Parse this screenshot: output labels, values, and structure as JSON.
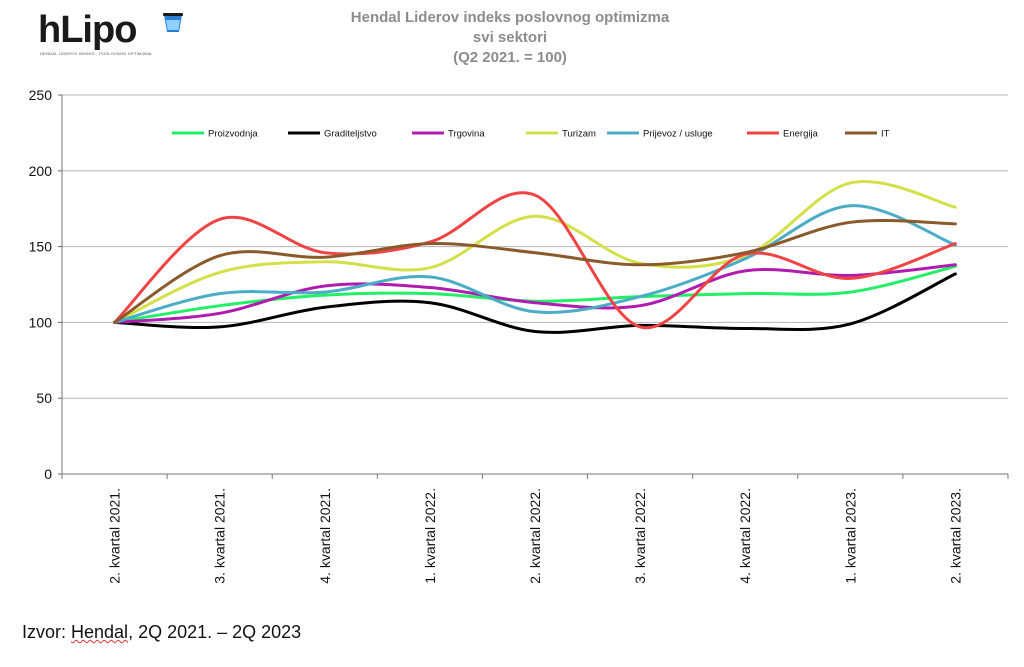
{
  "logo": {
    "text": "hLipo",
    "subtitle": "HENDAL LIDEROV INDEKS · POSLOVNOG OPTIMIZMA"
  },
  "title": {
    "line1": "Hendal Liderov indeks poslovnog  optimizma",
    "line2": "svi sektori",
    "line3": "(Q2 2021. = 100)"
  },
  "source": {
    "prefix": "Izvor:  ",
    "name": "Hendal",
    "rest": ", 2Q 2021. – 2Q 2023"
  },
  "chart_data": {
    "type": "line",
    "title": "Hendal Liderov indeks poslovnog optimizma – svi sektori (Q2 2021. = 100)",
    "categories": [
      "2. kvartal 2021.",
      "3. kvartal 2021.",
      "4. kvartal 2021.",
      "1. kvartal 2022.",
      "2. kvartal 2022.",
      "3. kvartal 2022.",
      "4. kvartal 2022.",
      "1. kvartal 2023.",
      "2. kvartal 2023."
    ],
    "ylim": [
      0,
      250
    ],
    "yticks": [
      0,
      50,
      100,
      150,
      200,
      250
    ],
    "grid": true,
    "legend": "top",
    "smooth": true,
    "series": [
      {
        "name": "Proizvodnja",
        "color": "#22ee66",
        "values": [
          100,
          111,
          118,
          119,
          114,
          117,
          119,
          120,
          137
        ]
      },
      {
        "name": "Graditeljstvo",
        "color": "#000000",
        "values": [
          100,
          97,
          110,
          113,
          94,
          98,
          96,
          99,
          132
        ]
      },
      {
        "name": "Trgovina",
        "color": "#b01cb0",
        "values": [
          100,
          106,
          124,
          123,
          113,
          111,
          134,
          131,
          138
        ]
      },
      {
        "name": "Turizam",
        "color": "#d4e04a",
        "values": [
          100,
          133,
          140,
          136,
          170,
          139,
          144,
          192,
          176
        ]
      },
      {
        "name": "Prijevoz / usluge",
        "color": "#4bacc6",
        "values": [
          100,
          119,
          120,
          130,
          107,
          117,
          142,
          177,
          151
        ]
      },
      {
        "name": "Energija",
        "color": "#f04444",
        "values": [
          100,
          168,
          146,
          153,
          184,
          97,
          145,
          129,
          152
        ]
      },
      {
        "name": "IT",
        "color": "#8b5a2b",
        "values": [
          100,
          144,
          143,
          152,
          146,
          138,
          146,
          166,
          165
        ]
      }
    ]
  }
}
